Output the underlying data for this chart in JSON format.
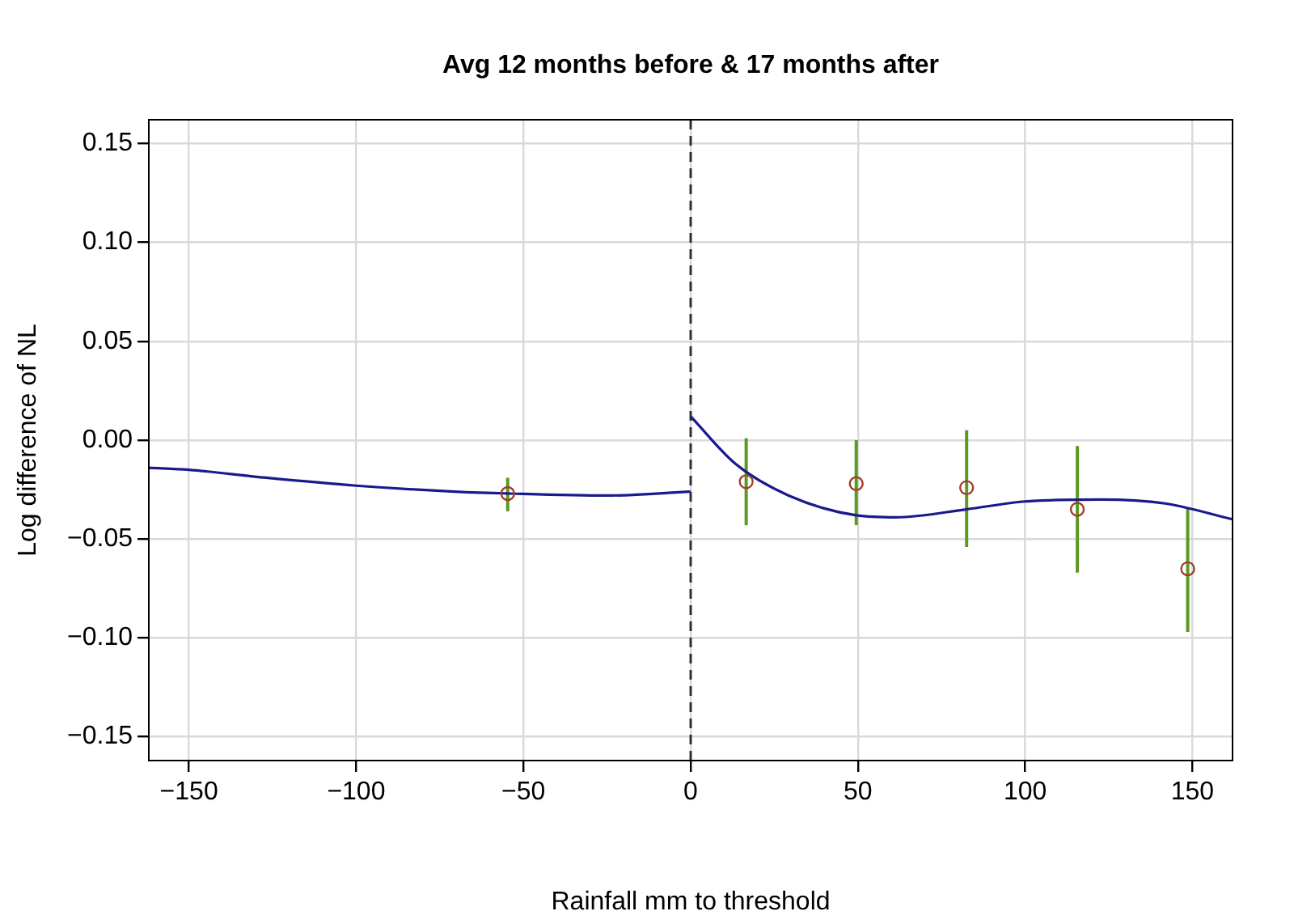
{
  "chart_data": {
    "type": "scatter",
    "title": "Avg 12 months before & 17 months after",
    "xlabel": "Rainfall mm to threshold",
    "ylabel": "Log difference of NL",
    "xlim": [
      -162,
      162
    ],
    "ylim": [
      -0.162,
      0.162
    ],
    "xticks": [
      {
        "value": -150,
        "label": "−150"
      },
      {
        "value": -100,
        "label": "−100"
      },
      {
        "value": -50,
        "label": "−50"
      },
      0,
      50,
      100,
      150
    ],
    "yticks": [
      {
        "value": -0.15,
        "label": "−0.15"
      },
      {
        "value": -0.1,
        "label": "−0.10"
      },
      {
        "value": -0.05,
        "label": "−0.05"
      },
      {
        "value": 0,
        "label": "0.00"
      },
      0.05,
      {
        "value": 0.1,
        "label": "0.10"
      },
      0.15
    ],
    "grid": true,
    "marker": "circle",
    "ref_lines": [
      {
        "axis": "x",
        "value": 0,
        "color": "#333333",
        "line_style": "dashed"
      }
    ],
    "series": [
      {
        "color": "#a0402a",
        "x": [
          -54.7,
          16.6,
          49.5,
          82.5,
          115.6,
          148.6
        ],
        "values": [
          -0.027,
          -0.021,
          -0.022,
          -0.024,
          -0.035,
          -0.065
        ],
        "errors": [
          [
            -0.036,
            -0.019
          ],
          [
            -0.043,
            0.001
          ],
          [
            -0.043,
            0.0
          ],
          [
            -0.054,
            0.005
          ],
          [
            -0.067,
            -0.003
          ],
          [
            -0.097,
            -0.034
          ]
        ]
      },
      {
        "type": "line",
        "color": "#1a1a8c",
        "marker": "none",
        "x": [
          -162,
          -150,
          -127,
          -100,
          -70.5,
          -54,
          -25,
          0
        ],
        "values": [
          -0.014,
          -0.015,
          -0.019,
          -0.023,
          -0.026,
          -0.027,
          -0.028,
          -0.026
        ]
      },
      {
        "type": "line",
        "color": "#1a1a8c",
        "marker": "none",
        "x": [
          0,
          13.4,
          29.3,
          49.5,
          61.4,
          82.3,
          100,
          122.5,
          141.8,
          162
        ],
        "values": [
          0.012,
          -0.012,
          -0.028,
          -0.038,
          -0.039,
          -0.035,
          -0.031,
          -0.03,
          -0.032,
          -0.04
        ]
      }
    ]
  }
}
